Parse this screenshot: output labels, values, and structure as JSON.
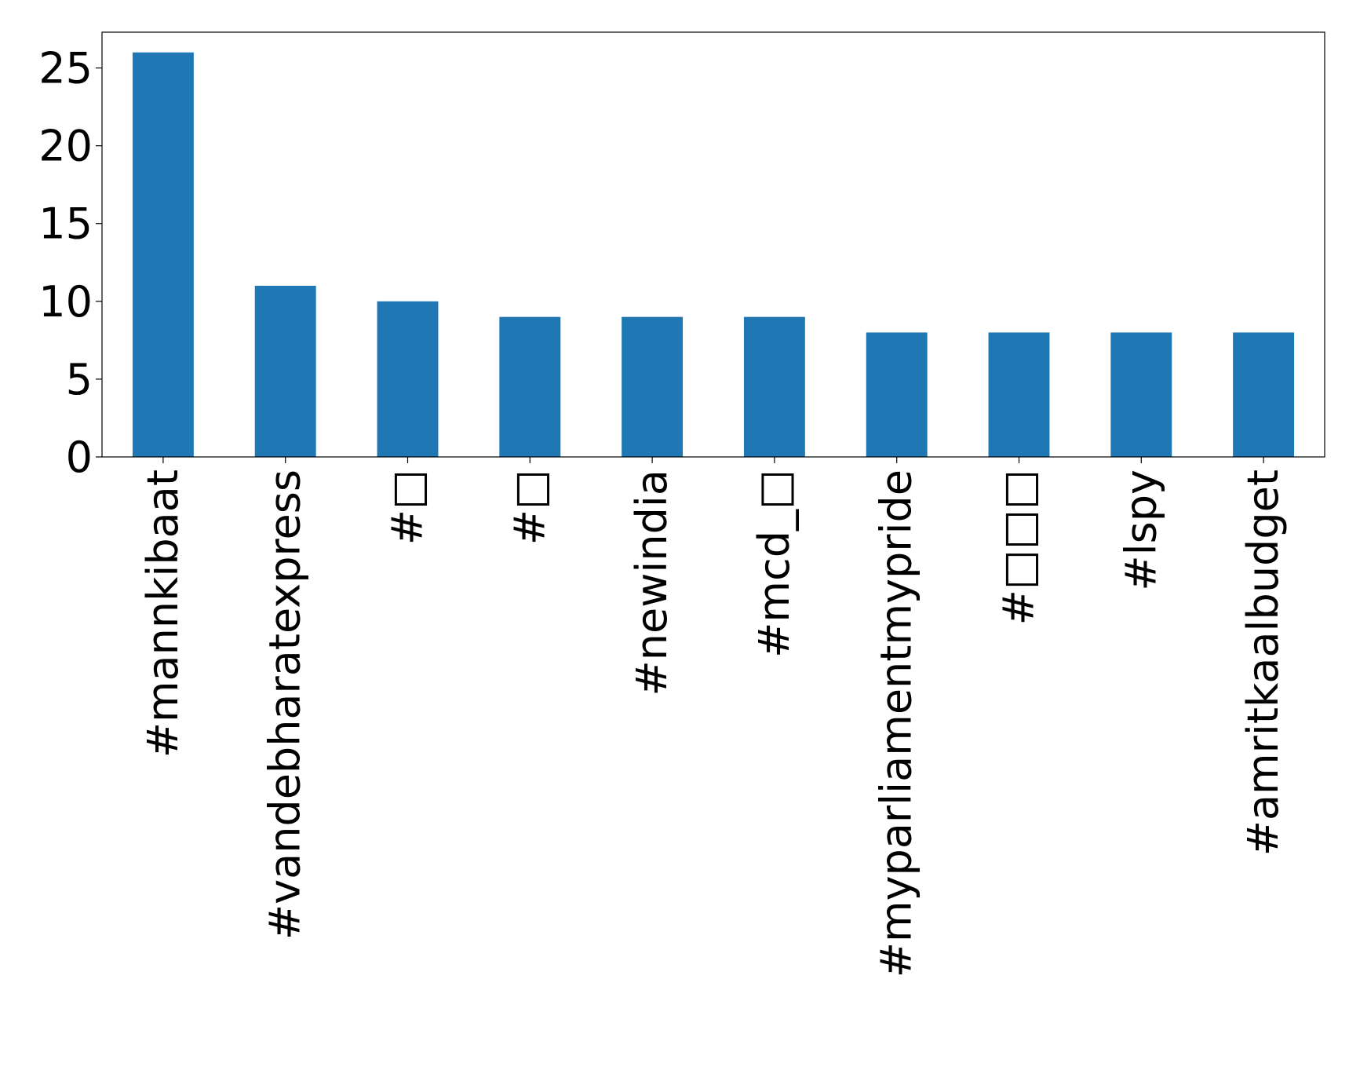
{
  "chart_data": {
    "type": "bar",
    "title": "",
    "xlabel": "",
    "ylabel": "",
    "categories": [
      "#mannkibaat",
      "#vandebharatexpress",
      "#□",
      "#□",
      "#newindia",
      "#mcd_□",
      "#myparliamentmypride",
      "#□□□",
      "#lspy",
      "#amritkaalbudget"
    ],
    "values": [
      26,
      11,
      10,
      9,
      9,
      9,
      8,
      8,
      8,
      8
    ],
    "ylim": [
      0,
      27.3
    ],
    "yticks": [
      0,
      5,
      10,
      15,
      20,
      25
    ],
    "bar_color": "#1f77b4",
    "grid": false,
    "legend": "none"
  }
}
